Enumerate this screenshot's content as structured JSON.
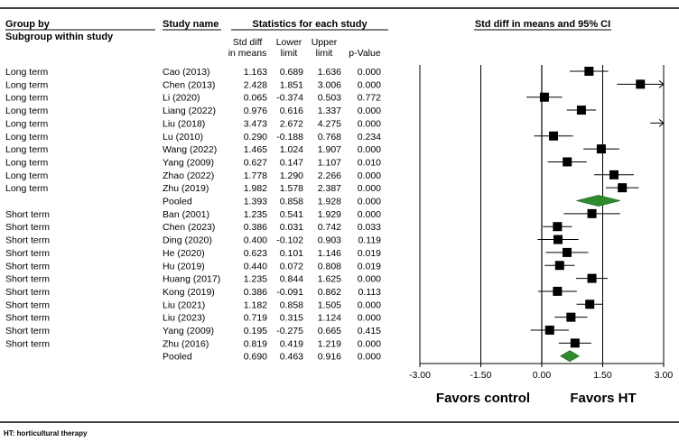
{
  "headers": {
    "group_by": "Group by",
    "subgroup": "Subgroup within study",
    "study_name": "Study name",
    "stats": "Statistics for each study",
    "ci": "Std diff in means and 95% CI",
    "col_std_1": "Std diff",
    "col_std_2": "in means",
    "col_lower_1": "Lower",
    "col_lower_2": "limit",
    "col_upper_1": "Upper",
    "col_upper_2": "limit",
    "col_p": "p-Value"
  },
  "favors": {
    "left": "Favors control",
    "right": "Favors HT"
  },
  "footnote": "HT: horticultural therapy",
  "colors": {
    "study_marker": "#000000",
    "pooled_marker": "#2e8b2e",
    "line": "#000000"
  },
  "chart_data": {
    "type": "forest",
    "title": "Std diff in means and 95% CI",
    "xlim": [
      -3,
      3
    ],
    "ticks": [
      -3,
      -1.5,
      0,
      1.5,
      3
    ],
    "tick_labels": [
      "-3.00",
      "-1.50",
      "0.00",
      "1.50",
      "3.00"
    ],
    "xlabel_left": "Favors control",
    "xlabel_right": "Favors HT",
    "rows": [
      {
        "group": "Long term",
        "study": "Cao (2013)",
        "std": "1.163",
        "lower": "0.689",
        "upper": "1.636",
        "p": "0.000",
        "pooled": false
      },
      {
        "group": "Long term",
        "study": "Chen (2013)",
        "std": "2.428",
        "lower": "1.851",
        "upper": "3.006",
        "p": "0.000",
        "pooled": false
      },
      {
        "group": "Long term",
        "study": "Li (2020)",
        "std": "0.065",
        "lower": "-0.374",
        "upper": "0.503",
        "p": "0.772",
        "pooled": false
      },
      {
        "group": "Long term",
        "study": "Liang (2022)",
        "std": "0.976",
        "lower": "0.616",
        "upper": "1.337",
        "p": "0.000",
        "pooled": false
      },
      {
        "group": "Long term",
        "study": "Liu (2018)",
        "std": "3.473",
        "lower": "2.672",
        "upper": "4.275",
        "p": "0.000",
        "pooled": false
      },
      {
        "group": "Long term",
        "study": "Lu (2010)",
        "std": "0.290",
        "lower": "-0.188",
        "upper": "0.768",
        "p": "0.234",
        "pooled": false
      },
      {
        "group": "Long term",
        "study": "Wang (2022)",
        "std": "1.465",
        "lower": "1.024",
        "upper": "1.907",
        "p": "0.000",
        "pooled": false
      },
      {
        "group": "Long term",
        "study": "Yang (2009)",
        "std": "0.627",
        "lower": "0.147",
        "upper": "1.107",
        "p": "0.010",
        "pooled": false
      },
      {
        "group": "Long term",
        "study": "Zhao (2022)",
        "std": "1.778",
        "lower": "1.290",
        "upper": "2.266",
        "p": "0.000",
        "pooled": false
      },
      {
        "group": "Long term",
        "study": "Zhu (2019)",
        "std": "1.982",
        "lower": "1.578",
        "upper": "2.387",
        "p": "0.000",
        "pooled": false
      },
      {
        "group": "",
        "study": "Pooled",
        "std": "1.393",
        "lower": "0.858",
        "upper": "1.928",
        "p": "0.000",
        "pooled": true
      },
      {
        "group": "Short term",
        "study": "Ban (2001)",
        "std": "1.235",
        "lower": "0.541",
        "upper": "1.929",
        "p": "0.000",
        "pooled": false
      },
      {
        "group": "Short term",
        "study": "Chen (2023)",
        "std": "0.386",
        "lower": "0.031",
        "upper": "0.742",
        "p": "0.033",
        "pooled": false
      },
      {
        "group": "Short term",
        "study": "Ding (2020)",
        "std": "0.400",
        "lower": "-0.102",
        "upper": "0.903",
        "p": "0.119",
        "pooled": false
      },
      {
        "group": "Short term",
        "study": "He (2020)",
        "std": "0.623",
        "lower": "0.101",
        "upper": "1.146",
        "p": "0.019",
        "pooled": false
      },
      {
        "group": "Short term",
        "study": "Hu (2019)",
        "std": "0.440",
        "lower": "0.072",
        "upper": "0.808",
        "p": "0.019",
        "pooled": false
      },
      {
        "group": "Short term",
        "study": "Huang (2017)",
        "std": "1.235",
        "lower": "0.844",
        "upper": "1.625",
        "p": "0.000",
        "pooled": false
      },
      {
        "group": "Short term",
        "study": "Kong (2019)",
        "std": "0.386",
        "lower": "-0.091",
        "upper": "0.862",
        "p": "0.113",
        "pooled": false
      },
      {
        "group": "Short term",
        "study": "Liu (2021)",
        "std": "1.182",
        "lower": "0.858",
        "upper": "1.505",
        "p": "0.000",
        "pooled": false
      },
      {
        "group": "Short term",
        "study": "Liu (2023)",
        "std": "0.719",
        "lower": "0.315",
        "upper": "1.124",
        "p": "0.000",
        "pooled": false
      },
      {
        "group": "Short term",
        "study": "Yang (2009)",
        "std": "0.195",
        "lower": "-0.275",
        "upper": "0.665",
        "p": "0.415",
        "pooled": false
      },
      {
        "group": "Short term",
        "study": "Zhu (2016)",
        "std": "0.819",
        "lower": "0.419",
        "upper": "1.219",
        "p": "0.000",
        "pooled": false
      },
      {
        "group": "",
        "study": "Pooled",
        "std": "0.690",
        "lower": "0.463",
        "upper": "0.916",
        "p": "0.000",
        "pooled": true
      }
    ]
  }
}
